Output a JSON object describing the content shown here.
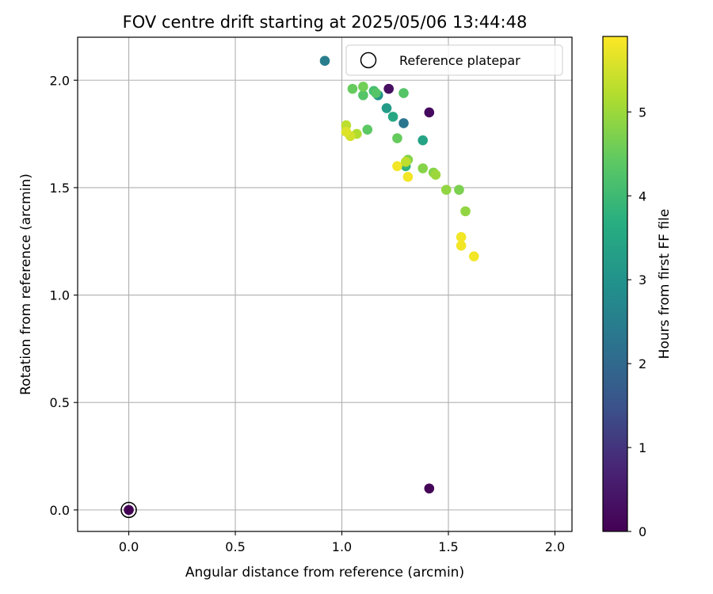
{
  "chart_data": {
    "type": "scatter",
    "title": "FOV centre drift starting at 2025/05/06 13:44:48",
    "xlabel": "Angular distance from reference (arcmin)",
    "ylabel": "Rotation from reference (arcmin)",
    "xlim": [
      -0.24,
      2.08
    ],
    "ylim": [
      -0.1,
      2.2
    ],
    "xticks": [
      0.0,
      0.5,
      1.0,
      1.5,
      2.0
    ],
    "xtick_labels": [
      "0.0",
      "0.5",
      "1.0",
      "1.5",
      "2.0"
    ],
    "yticks": [
      0.0,
      0.5,
      1.0,
      1.5,
      2.0
    ],
    "ytick_labels": [
      "0.0",
      "0.5",
      "1.0",
      "1.5",
      "2.0"
    ],
    "grid": true,
    "legend": {
      "position": "top-right",
      "entries": [
        "Reference platepar"
      ]
    },
    "colorbar": {
      "label": "Hours from first FF file",
      "colormap": "viridis",
      "range": [
        0,
        5.9
      ],
      "ticks": [
        0,
        1,
        2,
        3,
        4,
        5
      ],
      "tick_labels": [
        "0",
        "1",
        "2",
        "3",
        "4",
        "5"
      ]
    },
    "reference": {
      "x": 0.0,
      "y": 0.0
    },
    "points": [
      {
        "x": 0.0,
        "y": 0.0,
        "hours": 0.0
      },
      {
        "x": 1.41,
        "y": 0.1,
        "hours": 0.1
      },
      {
        "x": 1.41,
        "y": 1.85,
        "hours": 0.2
      },
      {
        "x": 1.22,
        "y": 1.96,
        "hours": 0.3
      },
      {
        "x": 1.29,
        "y": 1.8,
        "hours": 2.3
      },
      {
        "x": 0.92,
        "y": 2.09,
        "hours": 2.5
      },
      {
        "x": 1.17,
        "y": 1.93,
        "hours": 3.0
      },
      {
        "x": 1.21,
        "y": 1.87,
        "hours": 3.2
      },
      {
        "x": 1.24,
        "y": 1.83,
        "hours": 3.5
      },
      {
        "x": 1.38,
        "y": 1.72,
        "hours": 3.4
      },
      {
        "x": 1.3,
        "y": 1.6,
        "hours": 3.8
      },
      {
        "x": 1.15,
        "y": 1.95,
        "hours": 4.1
      },
      {
        "x": 1.1,
        "y": 1.93,
        "hours": 4.3
      },
      {
        "x": 1.16,
        "y": 1.94,
        "hours": 4.3
      },
      {
        "x": 1.29,
        "y": 1.94,
        "hours": 4.3
      },
      {
        "x": 1.12,
        "y": 1.77,
        "hours": 4.4
      },
      {
        "x": 1.26,
        "y": 1.73,
        "hours": 4.5
      },
      {
        "x": 1.05,
        "y": 1.96,
        "hours": 4.5
      },
      {
        "x": 1.1,
        "y": 1.97,
        "hours": 4.6
      },
      {
        "x": 1.31,
        "y": 1.63,
        "hours": 4.8
      },
      {
        "x": 1.38,
        "y": 1.59,
        "hours": 4.8
      },
      {
        "x": 1.43,
        "y": 1.57,
        "hours": 4.8
      },
      {
        "x": 1.55,
        "y": 1.49,
        "hours": 4.7
      },
      {
        "x": 1.58,
        "y": 1.39,
        "hours": 4.9
      },
      {
        "x": 1.49,
        "y": 1.49,
        "hours": 4.9
      },
      {
        "x": 1.44,
        "y": 1.56,
        "hours": 5.0
      },
      {
        "x": 1.07,
        "y": 1.75,
        "hours": 5.2
      },
      {
        "x": 1.02,
        "y": 1.79,
        "hours": 5.3
      },
      {
        "x": 1.3,
        "y": 1.62,
        "hours": 5.3
      },
      {
        "x": 1.04,
        "y": 1.74,
        "hours": 5.5
      },
      {
        "x": 1.02,
        "y": 1.76,
        "hours": 5.6
      },
      {
        "x": 1.26,
        "y": 1.6,
        "hours": 5.8
      },
      {
        "x": 1.31,
        "y": 1.55,
        "hours": 5.8
      },
      {
        "x": 1.56,
        "y": 1.27,
        "hours": 5.8
      },
      {
        "x": 1.56,
        "y": 1.23,
        "hours": 5.8
      },
      {
        "x": 1.62,
        "y": 1.18,
        "hours": 5.8
      }
    ]
  }
}
